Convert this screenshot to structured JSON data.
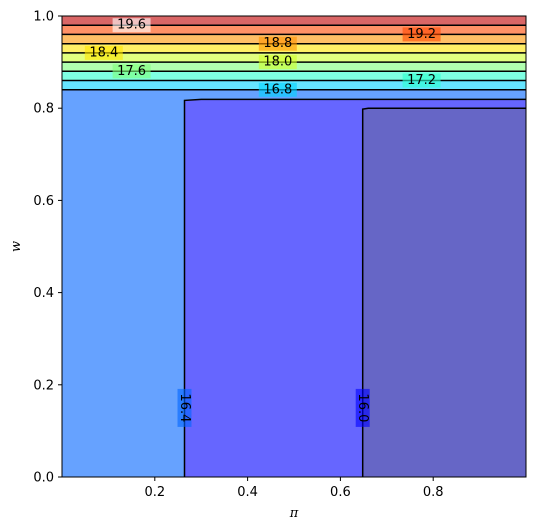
{
  "chart_data": {
    "type": "contour",
    "xlabel": "π",
    "ylabel": "w",
    "xlim": [
      0.0,
      1.0
    ],
    "ylim": [
      0.0,
      1.0
    ],
    "xticks": [
      "0.2",
      "0.4",
      "0.6",
      "0.8"
    ],
    "yticks": [
      "0.0",
      "0.2",
      "0.4",
      "0.6",
      "0.8",
      "1.0"
    ],
    "grid": false,
    "colormap": "jet",
    "fill_alpha": 0.6,
    "filled_regions": [
      {
        "name": "below-16.0",
        "color": "#0000a0",
        "polygon": [
          [
            0.648,
            0.0
          ],
          [
            1.0,
            0.0
          ],
          [
            1.0,
            0.8
          ],
          [
            0.66,
            0.8
          ],
          [
            0.648,
            0.798
          ]
        ]
      },
      {
        "name": "16.0-16.4",
        "color": "#0000ff",
        "polygon": [
          [
            0.264,
            0.0
          ],
          [
            0.648,
            0.0
          ],
          [
            0.648,
            0.798
          ],
          [
            0.66,
            0.8
          ],
          [
            1.0,
            0.8
          ],
          [
            1.0,
            0.819
          ],
          [
            0.3,
            0.819
          ],
          [
            0.264,
            0.817
          ]
        ]
      },
      {
        "name": "16.4-16.8",
        "color": "#0064ff",
        "polygon": [
          [
            0.0,
            0.0
          ],
          [
            0.264,
            0.0
          ],
          [
            0.264,
            0.817
          ],
          [
            0.3,
            0.819
          ],
          [
            1.0,
            0.819
          ],
          [
            1.0,
            0.84
          ],
          [
            0.0,
            0.84
          ]
        ]
      },
      {
        "name": "16.8-17.2",
        "color": "#00d4ff",
        "polygon": [
          [
            0.0,
            0.84
          ],
          [
            1.0,
            0.84
          ],
          [
            1.0,
            0.86
          ],
          [
            0.0,
            0.86
          ]
        ]
      },
      {
        "name": "17.2-17.6",
        "color": "#29ffce",
        "polygon": [
          [
            0.0,
            0.86
          ],
          [
            1.0,
            0.86
          ],
          [
            1.0,
            0.88
          ],
          [
            0.0,
            0.88
          ]
        ]
      },
      {
        "name": "17.6-18.0",
        "color": "#7dff7a",
        "polygon": [
          [
            0.0,
            0.88
          ],
          [
            1.0,
            0.88
          ],
          [
            1.0,
            0.9
          ],
          [
            0.0,
            0.9
          ]
        ]
      },
      {
        "name": "18.0-18.4",
        "color": "#ceff29",
        "polygon": [
          [
            0.0,
            0.9
          ],
          [
            1.0,
            0.9
          ],
          [
            1.0,
            0.92
          ],
          [
            0.0,
            0.92
          ]
        ]
      },
      {
        "name": "18.4-18.8",
        "color": "#ffe500",
        "polygon": [
          [
            0.0,
            0.92
          ],
          [
            1.0,
            0.92
          ],
          [
            1.0,
            0.94
          ],
          [
            0.0,
            0.94
          ]
        ]
      },
      {
        "name": "18.8-19.2",
        "color": "#ff9400",
        "polygon": [
          [
            0.0,
            0.94
          ],
          [
            1.0,
            0.94
          ],
          [
            1.0,
            0.96
          ],
          [
            0.0,
            0.96
          ]
        ]
      },
      {
        "name": "19.2-19.6",
        "color": "#ff4800",
        "polygon": [
          [
            0.0,
            0.96
          ],
          [
            1.0,
            0.96
          ],
          [
            1.0,
            0.98
          ],
          [
            0.0,
            0.98
          ]
        ]
      },
      {
        "name": "above-19.6",
        "color": "#c00000",
        "polygon": [
          [
            0.0,
            0.98
          ],
          [
            1.0,
            0.98
          ],
          [
            1.0,
            1.0
          ],
          [
            0.0,
            1.0
          ]
        ]
      }
    ],
    "contour_lines": [
      {
        "level": "16.0",
        "points": [
          [
            0.648,
            0.0
          ],
          [
            0.648,
            0.798
          ],
          [
            0.66,
            0.8
          ],
          [
            1.0,
            0.8
          ]
        ],
        "label": "16.0",
        "label_at": [
          0.648,
          0.15
        ],
        "label_rotation": 90
      },
      {
        "level": "16.4",
        "points": [
          [
            0.264,
            0.0
          ],
          [
            0.264,
            0.817
          ],
          [
            0.3,
            0.819
          ],
          [
            1.0,
            0.819
          ]
        ],
        "label": "16.4",
        "label_at": [
          0.264,
          0.15
        ],
        "label_rotation": 90
      },
      {
        "level": "16.8",
        "points": [
          [
            0.0,
            0.84
          ],
          [
            1.0,
            0.84
          ]
        ],
        "label": "16.8",
        "label_at": [
          0.465,
          0.84
        ],
        "label_rotation": 0
      },
      {
        "level": "17.2",
        "points": [
          [
            0.0,
            0.86
          ],
          [
            1.0,
            0.86
          ]
        ],
        "label": "17.2",
        "label_at": [
          0.775,
          0.86
        ],
        "label_rotation": 0
      },
      {
        "level": "17.6",
        "points": [
          [
            0.0,
            0.88
          ],
          [
            1.0,
            0.88
          ]
        ],
        "label": "17.6",
        "label_at": [
          0.15,
          0.88
        ],
        "label_rotation": 0
      },
      {
        "level": "18.0",
        "points": [
          [
            0.0,
            0.9
          ],
          [
            1.0,
            0.9
          ]
        ],
        "label": "18.0",
        "label_at": [
          0.465,
          0.9
        ],
        "label_rotation": 0
      },
      {
        "level": "18.4",
        "points": [
          [
            0.0,
            0.92
          ],
          [
            1.0,
            0.92
          ]
        ],
        "label": "18.4",
        "label_at": [
          0.09,
          0.92
        ],
        "label_rotation": 0
      },
      {
        "level": "18.8",
        "points": [
          [
            0.0,
            0.94
          ],
          [
            1.0,
            0.94
          ]
        ],
        "label": "18.8",
        "label_at": [
          0.465,
          0.94
        ],
        "label_rotation": 0
      },
      {
        "level": "19.2",
        "points": [
          [
            0.0,
            0.96
          ],
          [
            1.0,
            0.96
          ]
        ],
        "label": "19.2",
        "label_at": [
          0.775,
          0.96
        ],
        "label_rotation": 0
      },
      {
        "level": "19.6",
        "points": [
          [
            0.0,
            0.98
          ],
          [
            1.0,
            0.98
          ]
        ],
        "label": "19.6",
        "label_at": [
          0.15,
          0.98
        ],
        "label_rotation": 0
      }
    ]
  }
}
